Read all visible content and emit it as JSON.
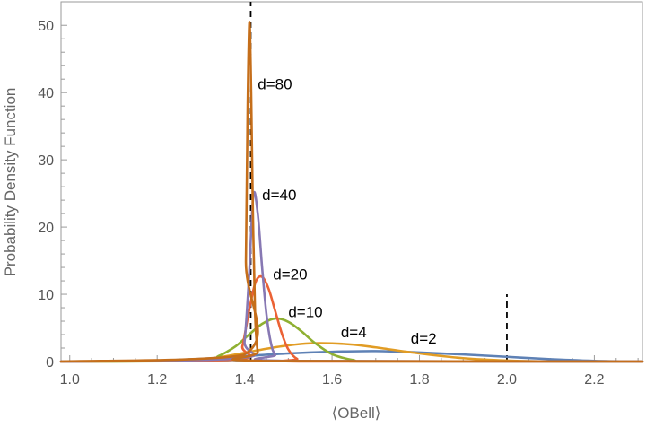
{
  "chart_data": {
    "type": "line",
    "title": "",
    "xlabel": "⟨OBell⟩",
    "ylabel": "Probability Density Function",
    "xlim": [
      0.98,
      2.31
    ],
    "ylim": [
      0,
      53.5
    ],
    "x_ticks": [
      "1.0",
      "1.2",
      "1.4",
      "1.6",
      "1.8",
      "2.0",
      "2.2"
    ],
    "y_ticks": [
      "0",
      "10",
      "20",
      "30",
      "40",
      "50"
    ],
    "grid": false,
    "frame": true,
    "series": [
      {
        "name": "d=2",
        "label": "d=2",
        "color": "#5E81B5",
        "x": [
          0.98,
          1.1,
          1.2,
          1.3,
          1.4,
          1.5,
          1.6,
          1.7,
          1.8,
          1.9,
          2.0,
          2.1,
          2.2,
          2.31
        ],
        "y": [
          0.0,
          0.05,
          0.15,
          0.4,
          0.8,
          1.2,
          1.45,
          1.55,
          1.35,
          1.05,
          0.7,
          0.35,
          0.1,
          0.0
        ]
      },
      {
        "name": "d=4",
        "label": "d=4",
        "color": "#E19C24",
        "x": [
          0.98,
          1.2,
          1.3,
          1.35,
          1.4,
          1.45,
          1.5,
          1.55,
          1.6,
          1.65,
          1.7,
          1.8,
          1.9,
          2.0,
          2.1,
          2.31
        ],
        "y": [
          0.0,
          0.05,
          0.3,
          0.7,
          1.3,
          1.9,
          2.4,
          2.7,
          2.7,
          2.5,
          2.1,
          1.2,
          0.5,
          0.15,
          0.02,
          0.0
        ]
      },
      {
        "name": "d=10",
        "label": "d=10",
        "color": "#8FB032",
        "x": [
          0.98,
          1.3,
          1.34,
          1.38,
          1.41,
          1.44,
          1.47,
          1.5,
          1.53,
          1.56,
          1.6,
          1.65,
          1.7,
          2.31
        ],
        "y": [
          0.0,
          0.1,
          0.8,
          2.3,
          4.0,
          5.6,
          6.4,
          5.9,
          4.5,
          2.8,
          1.1,
          0.2,
          0.0,
          0.0
        ]
      },
      {
        "name": "d=20",
        "label": "d=20",
        "color": "#EB6235",
        "x": [
          0.98,
          1.38,
          1.395,
          1.41,
          1.425,
          1.44,
          1.455,
          1.47,
          1.485,
          1.5,
          1.52,
          1.55,
          2.31
        ],
        "y": [
          0.0,
          0.3,
          2.3,
          7.5,
          11.8,
          12.6,
          10.8,
          7.5,
          4.2,
          1.8,
          0.4,
          0.0,
          0.0
        ]
      },
      {
        "name": "d=40",
        "label": "d=40",
        "color": "#8778B3",
        "x": [
          0.98,
          1.39,
          1.4,
          1.41,
          1.42,
          1.43,
          1.44,
          1.45,
          1.46,
          1.47,
          1.49,
          2.31
        ],
        "y": [
          0.0,
          0.5,
          3.0,
          12.5,
          24.7,
          22.0,
          14.0,
          7.0,
          2.8,
          1.0,
          0.1,
          0.0
        ]
      },
      {
        "name": "d=80",
        "label": "d=80",
        "color": "#C56E1A",
        "x": [
          0.98,
          1.398,
          1.403,
          1.407,
          1.411,
          1.415,
          1.419,
          1.424,
          1.43,
          1.44,
          2.31
        ],
        "y": [
          0.0,
          1.0,
          15.0,
          38.0,
          50.5,
          40.0,
          22.0,
          7.0,
          1.5,
          0.1,
          0.0
        ]
      }
    ],
    "labels_text": [
      "d=80",
      "d=40",
      "d=20",
      "d=10",
      "d=4",
      "d=2"
    ],
    "reference_lines": [
      {
        "orientation": "vertical",
        "x": 1.414,
        "y_range": [
          0,
          53.5
        ],
        "style": "dashed",
        "color": "#000000"
      },
      {
        "orientation": "vertical",
        "x": 2.0,
        "y_range": [
          0,
          10
        ],
        "style": "dashed",
        "color": "#000000"
      }
    ]
  }
}
